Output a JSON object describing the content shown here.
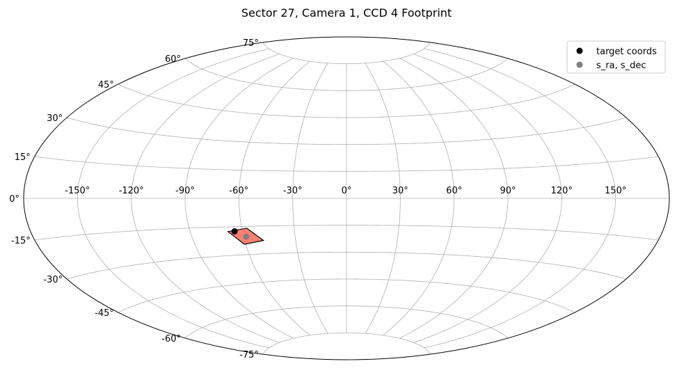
{
  "chart_data": {
    "type": "scatter",
    "projection": "aitoff",
    "title": "Sector 27, Camera 1, CCD 4 Footprint",
    "xlabel": "",
    "ylabel": "",
    "grid": true,
    "xlim": [
      -180,
      180
    ],
    "ylim": [
      -90,
      90
    ],
    "x_tick_labels": [
      "-150°",
      "-120°",
      "-90°",
      "-60°",
      "-30°",
      "0°",
      "30°",
      "60°",
      "90°",
      "120°",
      "150°"
    ],
    "x_ticks": [
      -150,
      -120,
      -90,
      -60,
      -30,
      0,
      30,
      60,
      90,
      120,
      150
    ],
    "y_tick_labels": [
      "75°",
      "60°",
      "45°",
      "30°",
      "15°",
      "0°",
      "-15°",
      "-30°",
      "-45°",
      "-60°",
      "-75°"
    ],
    "y_ticks": [
      75,
      60,
      45,
      30,
      15,
      0,
      -15,
      -30,
      -45,
      -60,
      -75
    ],
    "footprint": {
      "color": "#fa8072",
      "edge_color": "#000000",
      "corners": [
        [
          -68.3,
          -17.5
        ],
        [
          -57.1,
          -16.0
        ],
        [
          -49.0,
          -22.8
        ],
        [
          -60.8,
          -24.5
        ]
      ]
    },
    "series": [
      {
        "name": "target coords",
        "color": "#000000",
        "points": [
          [
            -64.5,
            -17.5
          ]
        ]
      },
      {
        "name": "s_ra, s_dec",
        "color": "#808080",
        "points": [
          [
            -58.5,
            -20.5
          ]
        ]
      }
    ],
    "legend_position": "upper right"
  }
}
